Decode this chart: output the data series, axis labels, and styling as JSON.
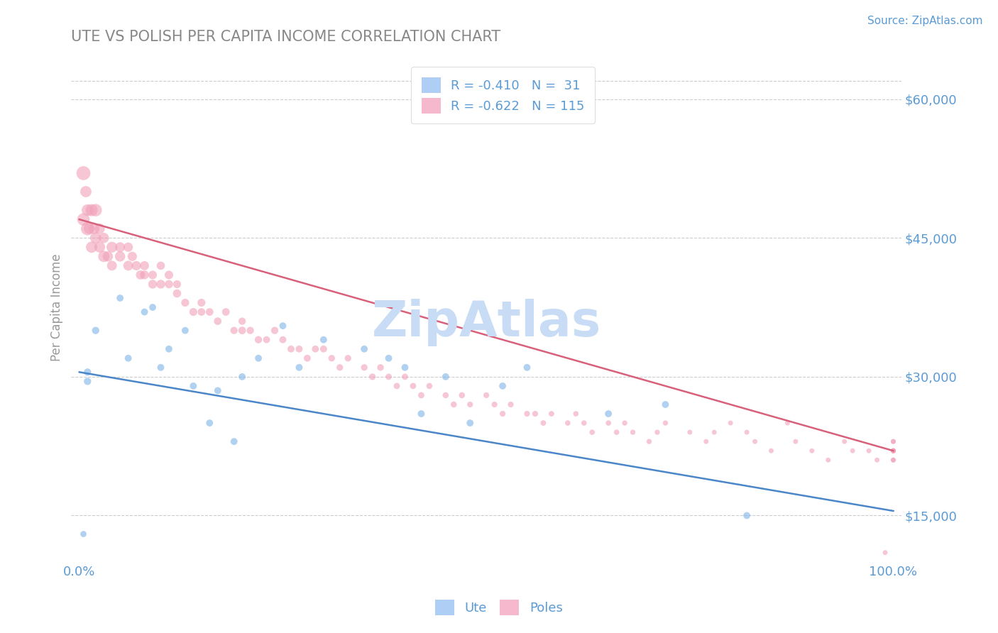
{
  "title": "UTE VS POLISH PER CAPITA INCOME CORRELATION CHART",
  "source_text": "Source: ZipAtlas.com",
  "ylabel": "Per Capita Income",
  "x_min": 0.0,
  "x_max": 1.0,
  "y_min": 10000,
  "y_max": 65000,
  "yticks": [
    15000,
    30000,
    45000,
    60000
  ],
  "ytick_labels": [
    "$15,000",
    "$30,000",
    "$45,000",
    "$60,000"
  ],
  "xtick_labels": [
    "0.0%",
    "100.0%"
  ],
  "blue_scatter_color": "#7eb3e8",
  "pink_scatter_color": "#f0a0b8",
  "blue_line_color": "#4a86c8",
  "pink_line_color": "#d9607a",
  "legend_blue_face": "#aecef5",
  "legend_pink_face": "#f5b8cc",
  "watermark": "ZipAtlas",
  "watermark_color": "#c8ddf5",
  "title_color": "#888888",
  "axis_color": "#5b9bd5",
  "grid_color": "#cccccc",
  "ute_line_intercept": 30500,
  "ute_line_slope": -15000,
  "poles_line_intercept": 47000,
  "poles_line_slope": -25000,
  "ute_x": [
    0.005,
    0.01,
    0.01,
    0.02,
    0.05,
    0.06,
    0.08,
    0.09,
    0.1,
    0.11,
    0.13,
    0.14,
    0.16,
    0.17,
    0.19,
    0.2,
    0.22,
    0.25,
    0.27,
    0.3,
    0.35,
    0.38,
    0.4,
    0.42,
    0.45,
    0.48,
    0.52,
    0.55,
    0.65,
    0.72,
    0.82
  ],
  "ute_y": [
    13000,
    29500,
    30500,
    35000,
    38500,
    32000,
    37000,
    37500,
    31000,
    33000,
    35000,
    29000,
    25000,
    28500,
    23000,
    30000,
    32000,
    35500,
    31000,
    34000,
    33000,
    32000,
    31000,
    26000,
    30000,
    25000,
    29000,
    31000,
    26000,
    27000,
    15000
  ],
  "ute_sizes": [
    40,
    55,
    55,
    55,
    50,
    50,
    50,
    50,
    50,
    50,
    50,
    50,
    50,
    50,
    50,
    50,
    50,
    50,
    50,
    50,
    50,
    50,
    50,
    50,
    50,
    50,
    50,
    50,
    50,
    50,
    50
  ],
  "poles_x": [
    0.005,
    0.005,
    0.008,
    0.01,
    0.01,
    0.012,
    0.015,
    0.015,
    0.018,
    0.02,
    0.02,
    0.025,
    0.025,
    0.03,
    0.03,
    0.035,
    0.04,
    0.04,
    0.05,
    0.05,
    0.06,
    0.06,
    0.065,
    0.07,
    0.075,
    0.08,
    0.08,
    0.09,
    0.09,
    0.1,
    0.1,
    0.11,
    0.11,
    0.12,
    0.12,
    0.13,
    0.14,
    0.15,
    0.15,
    0.16,
    0.17,
    0.18,
    0.19,
    0.2,
    0.2,
    0.21,
    0.22,
    0.23,
    0.24,
    0.25,
    0.26,
    0.27,
    0.28,
    0.29,
    0.3,
    0.31,
    0.32,
    0.33,
    0.35,
    0.36,
    0.37,
    0.38,
    0.39,
    0.4,
    0.41,
    0.42,
    0.43,
    0.45,
    0.46,
    0.47,
    0.48,
    0.5,
    0.51,
    0.52,
    0.53,
    0.55,
    0.56,
    0.57,
    0.58,
    0.6,
    0.61,
    0.62,
    0.63,
    0.65,
    0.66,
    0.67,
    0.68,
    0.7,
    0.71,
    0.72,
    0.75,
    0.77,
    0.78,
    0.8,
    0.82,
    0.83,
    0.85,
    0.87,
    0.88,
    0.9,
    0.92,
    0.94,
    0.95,
    0.97,
    0.98,
    0.99,
    1.0,
    1.0,
    1.0,
    1.0,
    1.0,
    1.0,
    1.0,
    1.0,
    1.0
  ],
  "poles_y": [
    52000,
    47000,
    50000,
    46000,
    48000,
    46000,
    48000,
    44000,
    46000,
    48000,
    45000,
    44000,
    46000,
    43000,
    45000,
    43000,
    44000,
    42000,
    43000,
    44000,
    42000,
    44000,
    43000,
    42000,
    41000,
    42000,
    41000,
    40000,
    41000,
    40000,
    42000,
    41000,
    40000,
    39000,
    40000,
    38000,
    37000,
    38000,
    37000,
    37000,
    36000,
    37000,
    35000,
    36000,
    35000,
    35000,
    34000,
    34000,
    35000,
    34000,
    33000,
    33000,
    32000,
    33000,
    33000,
    32000,
    31000,
    32000,
    31000,
    30000,
    31000,
    30000,
    29000,
    30000,
    29000,
    28000,
    29000,
    28000,
    27000,
    28000,
    27000,
    28000,
    27000,
    26000,
    27000,
    26000,
    26000,
    25000,
    26000,
    25000,
    26000,
    25000,
    24000,
    25000,
    24000,
    25000,
    24000,
    23000,
    24000,
    25000,
    24000,
    23000,
    24000,
    25000,
    24000,
    23000,
    22000,
    25000,
    23000,
    22000,
    21000,
    23000,
    22000,
    22000,
    21000,
    11000,
    22000,
    23000,
    23000,
    22000,
    22000,
    21000,
    22000,
    21000,
    22000
  ],
  "poles_sizes": [
    200,
    160,
    130,
    180,
    140,
    120,
    150,
    130,
    120,
    160,
    130,
    120,
    110,
    130,
    110,
    110,
    120,
    100,
    110,
    100,
    100,
    90,
    90,
    90,
    85,
    85,
    80,
    80,
    75,
    80,
    70,
    75,
    70,
    70,
    65,
    65,
    65,
    65,
    60,
    60,
    60,
    60,
    55,
    55,
    60,
    55,
    55,
    50,
    55,
    50,
    50,
    50,
    50,
    50,
    50,
    45,
    45,
    45,
    45,
    45,
    45,
    40,
    40,
    40,
    40,
    40,
    38,
    38,
    38,
    38,
    35,
    35,
    35,
    35,
    35,
    35,
    35,
    32,
    32,
    30,
    30,
    30,
    30,
    30,
    30,
    28,
    28,
    28,
    28,
    28,
    25,
    25,
    25,
    25,
    25,
    25,
    25,
    25,
    25,
    25,
    25,
    25,
    25,
    25,
    25,
    25,
    25,
    25,
    25,
    25,
    25,
    25,
    25,
    25,
    25
  ]
}
